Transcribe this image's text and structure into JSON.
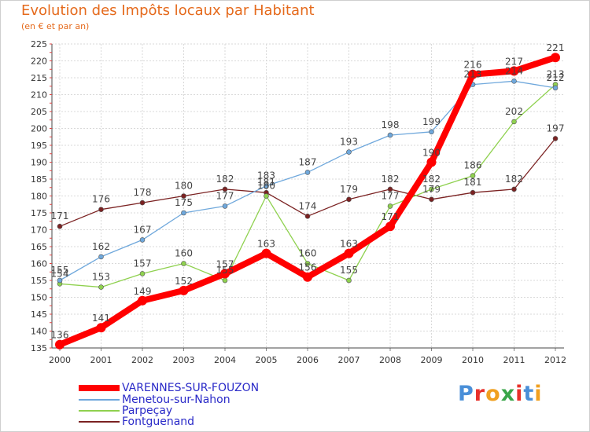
{
  "header": {
    "title": "Evolution des Impôts locaux par Habitant",
    "subtitle": "(en € et par an)"
  },
  "chart_data": {
    "type": "line",
    "title": "Evolution des Impôts locaux par Habitant",
    "subtitle": "(en € et par an)",
    "xlabel": "",
    "ylabel": "",
    "x": [
      "2000",
      "2001",
      "2002",
      "2003",
      "2004",
      "2005",
      "2006",
      "2007",
      "2008",
      "2009",
      "2010",
      "2011",
      "2012"
    ],
    "ylim": [
      135,
      225
    ],
    "yticks": [
      135,
      140,
      145,
      150,
      155,
      160,
      165,
      170,
      175,
      180,
      185,
      190,
      195,
      200,
      205,
      210,
      215,
      220,
      225
    ],
    "grid": true,
    "legend_position": "bottom-left",
    "series": [
      {
        "name": "VARENNES-SUR-FOUZON",
        "color": "#ff0000",
        "values": [
          136,
          141,
          149,
          152,
          157,
          163,
          156,
          163,
          171,
          190,
          216,
          217,
          221
        ]
      },
      {
        "name": "Menetou-sur-Nahon",
        "color": "#6fa8dc",
        "values": [
          155,
          162,
          167,
          175,
          177,
          183,
          187,
          193,
          198,
          199,
          213,
          214,
          212
        ]
      },
      {
        "name": "Parpeçay",
        "color": "#8fd14f",
        "values": [
          154,
          153,
          157,
          160,
          155,
          180,
          160,
          155,
          177,
          182,
          186,
          202,
          213
        ]
      },
      {
        "name": "Fontguenand",
        "color": "#7b2222",
        "values": [
          171,
          176,
          178,
          180,
          182,
          181,
          174,
          179,
          182,
          179,
          181,
          182,
          197
        ]
      }
    ]
  },
  "logo": {
    "text": "Proxiti",
    "letters": [
      {
        "char": "P",
        "color": "#4a8fd8"
      },
      {
        "char": "r",
        "color": "#e8302a"
      },
      {
        "char": "o",
        "color": "#f0a020"
      },
      {
        "char": "x",
        "color": "#3aa64a"
      },
      {
        "char": "i",
        "color": "#e8302a"
      },
      {
        "char": "t",
        "color": "#4a8fd8"
      },
      {
        "char": "i",
        "color": "#f0a020"
      }
    ]
  }
}
